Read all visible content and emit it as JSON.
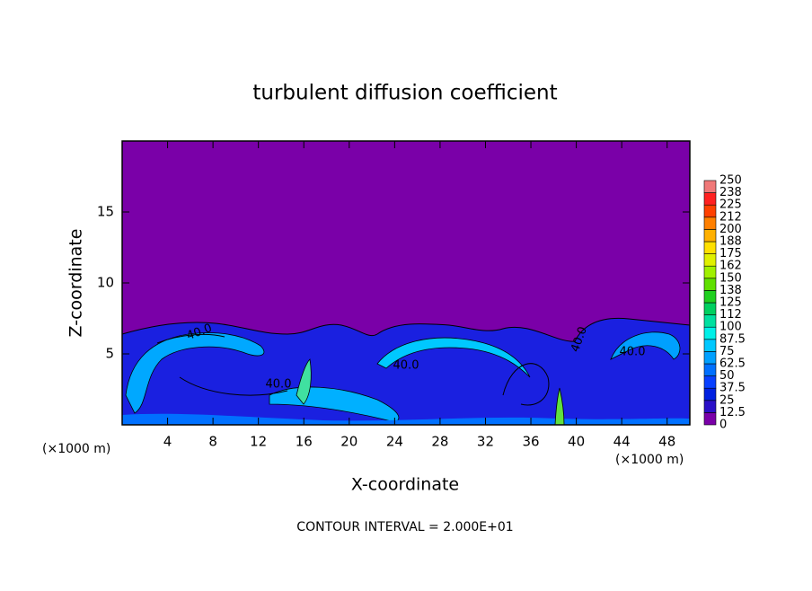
{
  "chart_data": {
    "type": "contour",
    "title": "turbulent diffusion coefficient",
    "x_label": "X-coordinate",
    "y_label": "Z-coordinate",
    "x_unit_left": "(×1000 m)",
    "x_unit_right": "(×1000 m)",
    "footer": "CONTOUR INTERVAL = 2.000E+01",
    "xlim": [
      0,
      50
    ],
    "xticks": [
      4,
      8,
      12,
      16,
      20,
      24,
      28,
      32,
      36,
      40,
      44,
      48
    ],
    "ylim": [
      0,
      20
    ],
    "yticks": [
      5,
      10,
      15
    ],
    "contour_labels": [
      "40.0",
      "40.0",
      "40.0",
      "40.0",
      "40.0"
    ],
    "colorbar": {
      "levels": [
        0,
        12.5,
        25,
        37.5,
        50,
        62.5,
        75,
        87.5,
        100,
        {
          "value": 112.5,
          "label": "112"
        },
        125,
        {
          "value": 137.5,
          "label": "138"
        },
        150,
        {
          "value": 162.5,
          "label": "162"
        },
        175,
        {
          "value": 187.5,
          "label": "188"
        },
        200,
        {
          "value": 212.5,
          "label": "212"
        },
        225,
        {
          "value": 237.5,
          "label": "238"
        },
        250
      ],
      "colors": [
        "#7a00a8",
        "#2a10c8",
        "#0020e0",
        "#0840ff",
        "#0070ff",
        "#00a0ff",
        "#00c8ff",
        "#00f0e8",
        "#00e0a0",
        "#00d060",
        "#20d020",
        "#60e000",
        "#a0f000",
        "#e0f000",
        "#ffe000",
        "#ffb000",
        "#ff8000",
        "#ff4000",
        "#ff2020",
        "#f07878"
      ]
    }
  }
}
